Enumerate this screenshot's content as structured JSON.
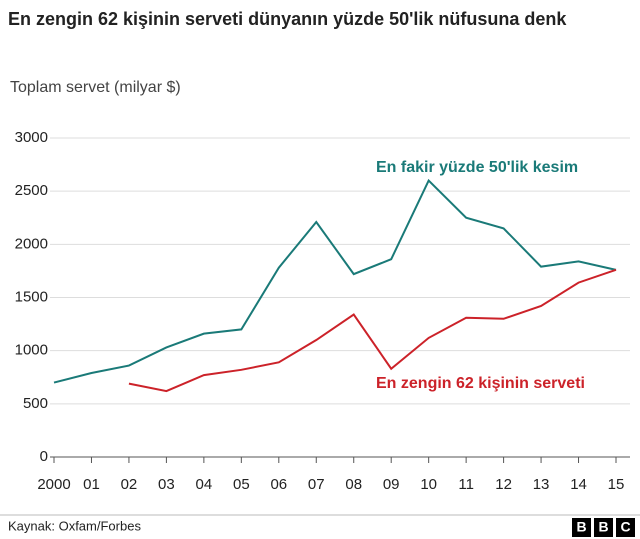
{
  "chart_data": {
    "type": "line",
    "title": "En zengin 62 kişinin serveti dünyanın yüzde 50'lik nüfusuna denk",
    "subtitle": "Toplam servet (milyar $)",
    "categories": [
      "2000",
      "01",
      "02",
      "03",
      "04",
      "05",
      "06",
      "07",
      "08",
      "09",
      "10",
      "11",
      "12",
      "13",
      "14",
      "15"
    ],
    "series": [
      {
        "name": "En fakir yüzde 50'lik kesim",
        "color": "#1a7a78",
        "values": [
          700,
          790,
          860,
          1030,
          1160,
          1200,
          1780,
          2210,
          1720,
          1860,
          2600,
          2250,
          2150,
          1790,
          1840,
          1760
        ]
      },
      {
        "name": "En zengin 62 kişinin serveti",
        "color": "#cc2229",
        "values": [
          null,
          null,
          690,
          620,
          770,
          820,
          890,
          1100,
          1340,
          830,
          1120,
          1310,
          1300,
          1420,
          1640,
          1760
        ]
      }
    ],
    "ylim": [
      0,
      3000
    ],
    "yticks": [
      0,
      500,
      1000,
      1500,
      2000,
      2500,
      3000
    ],
    "grid": true,
    "source": "Kaynak: Oxfam/Forbes",
    "logo": [
      "B",
      "B",
      "C"
    ]
  }
}
